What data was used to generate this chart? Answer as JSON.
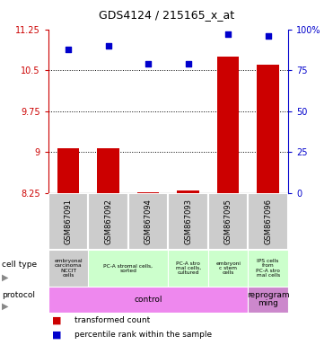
{
  "title": "GDS4124 / 215165_x_at",
  "samples": [
    "GSM867091",
    "GSM867092",
    "GSM867094",
    "GSM867093",
    "GSM867095",
    "GSM867096"
  ],
  "red_values": [
    9.07,
    9.07,
    8.27,
    8.3,
    10.75,
    10.6
  ],
  "blue_values": [
    88,
    90,
    79,
    79,
    97,
    96
  ],
  "ylim_left": [
    8.25,
    11.25
  ],
  "ylim_right": [
    0,
    100
  ],
  "yticks_left": [
    8.25,
    9.0,
    9.75,
    10.5,
    11.25
  ],
  "yticks_right": [
    0,
    25,
    50,
    75,
    100
  ],
  "ytick_labels_left": [
    "8.25",
    "9",
    "9.75",
    "10.5",
    "11.25"
  ],
  "ytick_labels_right": [
    "0",
    "25",
    "50",
    "75",
    "100%"
  ],
  "hlines": [
    9.0,
    9.75,
    10.5
  ],
  "cell_types": [
    {
      "label": "embryonal\ncarcinoma\nNCCIT\ncells",
      "span": [
        0,
        1
      ],
      "color": "#cccccc"
    },
    {
      "label": "PC-A stromal cells,\nsorted",
      "span": [
        1,
        3
      ],
      "color": "#ccffcc"
    },
    {
      "label": "PC-A stro\nmal cells,\ncultured",
      "span": [
        3,
        4
      ],
      "color": "#ccffcc"
    },
    {
      "label": "embryoni\nc stem\ncells",
      "span": [
        4,
        5
      ],
      "color": "#ccffcc"
    },
    {
      "label": "IPS cells\nfrom\nPC-A stro\nmal cells",
      "span": [
        5,
        6
      ],
      "color": "#ccffcc"
    }
  ],
  "protocols": [
    {
      "label": "control",
      "span": [
        0,
        5
      ],
      "color": "#ee88ee"
    },
    {
      "label": "reprogram\nming",
      "span": [
        5,
        6
      ],
      "color": "#cc88cc"
    }
  ],
  "bar_color": "#cc0000",
  "dot_color": "#0000cc",
  "left_axis_color": "#cc0000",
  "right_axis_color": "#0000cc",
  "sample_bg_color": "#cccccc"
}
